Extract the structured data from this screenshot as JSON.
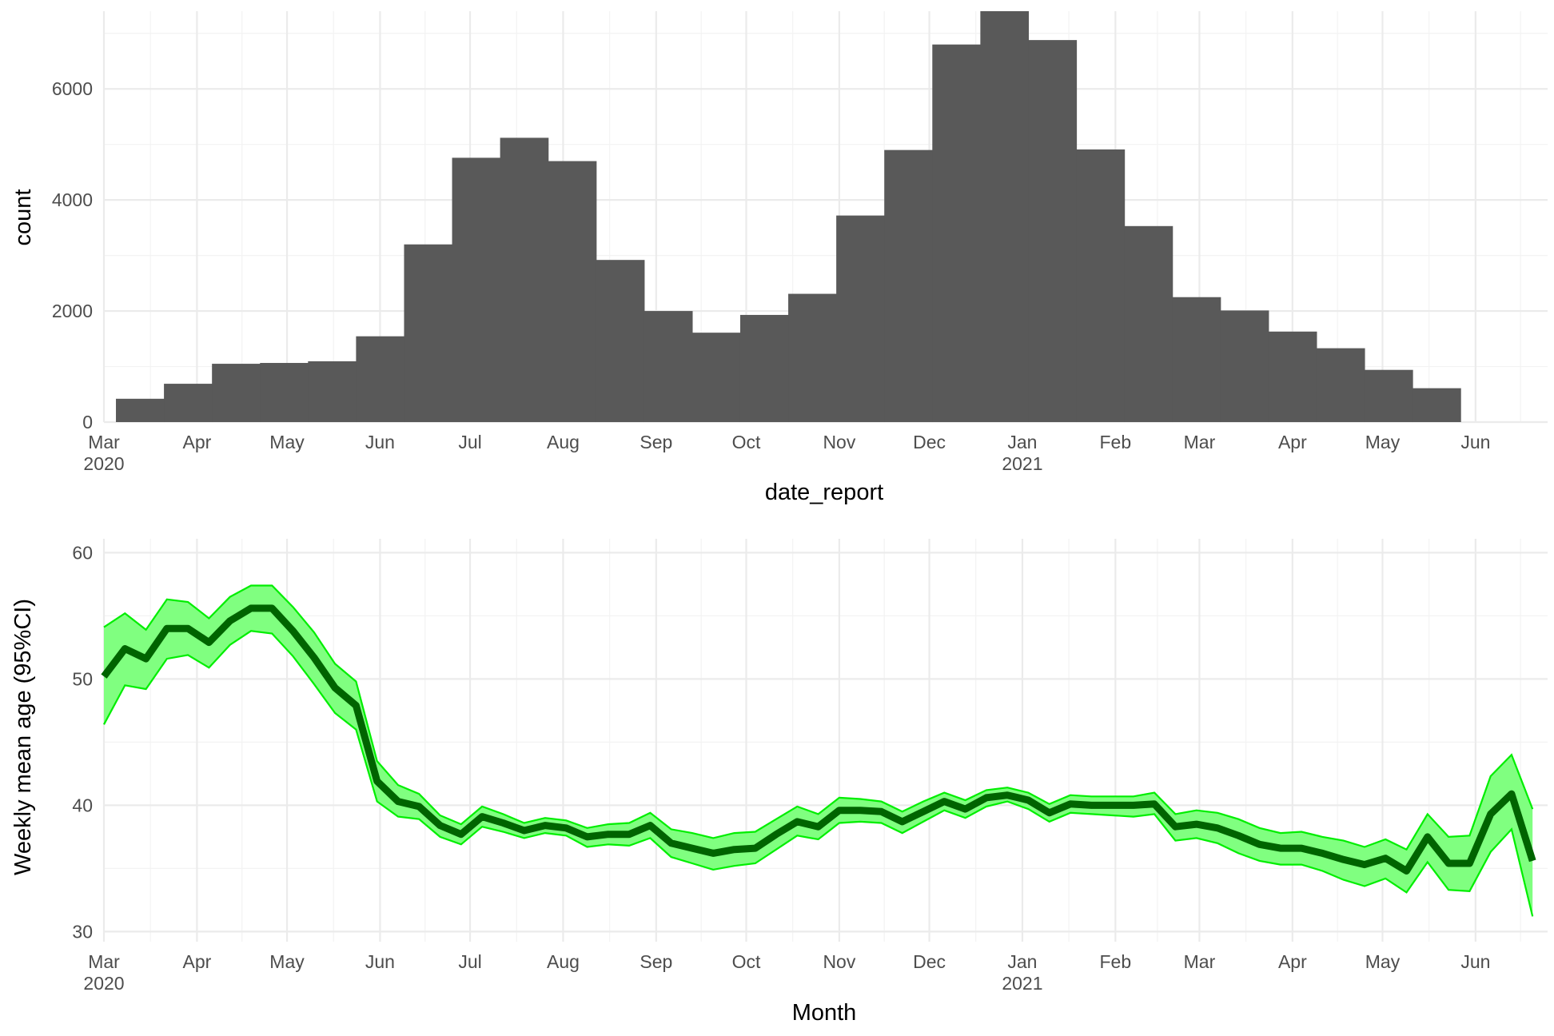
{
  "colors": {
    "bar_fill": "#595959",
    "grid_major": "#ebebeb",
    "grid_minor": "#f3f3f3",
    "ci_fill": "#80ff80",
    "ci_border": "#00ee00",
    "mean_line": "#006400"
  },
  "chart_data": [
    {
      "type": "bar",
      "title": "",
      "xlabel": "date_report",
      "ylabel": "count",
      "grid": true,
      "x_ticks": [
        {
          "date": "2020-03-01",
          "month": "Mar",
          "year": "2020"
        },
        {
          "date": "2020-04-01",
          "month": "Apr",
          "year": ""
        },
        {
          "date": "2020-05-01",
          "month": "May",
          "year": ""
        },
        {
          "date": "2020-06-01",
          "month": "Jun",
          "year": ""
        },
        {
          "date": "2020-07-01",
          "month": "Jul",
          "year": ""
        },
        {
          "date": "2020-08-01",
          "month": "Aug",
          "year": ""
        },
        {
          "date": "2020-09-01",
          "month": "Sep",
          "year": ""
        },
        {
          "date": "2020-10-01",
          "month": "Oct",
          "year": ""
        },
        {
          "date": "2020-11-01",
          "month": "Nov",
          "year": ""
        },
        {
          "date": "2020-12-01",
          "month": "Dec",
          "year": ""
        },
        {
          "date": "2021-01-01",
          "month": "Jan",
          "year": "2021"
        },
        {
          "date": "2021-02-01",
          "month": "Feb",
          "year": ""
        },
        {
          "date": "2021-03-01",
          "month": "Mar",
          "year": ""
        },
        {
          "date": "2021-04-01",
          "month": "Apr",
          "year": ""
        },
        {
          "date": "2021-05-01",
          "month": "May",
          "year": ""
        },
        {
          "date": "2021-06-01",
          "month": "Jun",
          "year": ""
        }
      ],
      "xlim": [
        "2020-03-01",
        "2021-06-25"
      ],
      "y_ticks": [
        0,
        2000,
        4000,
        6000
      ],
      "ylim": [
        0,
        7400
      ],
      "bins": [
        {
          "start": "2020-03-05",
          "end": "2020-03-21",
          "count": 420
        },
        {
          "start": "2020-03-21",
          "end": "2020-04-06",
          "count": 690
        },
        {
          "start": "2020-04-06",
          "end": "2020-04-22",
          "count": 1050
        },
        {
          "start": "2020-04-22",
          "end": "2020-05-08",
          "count": 1065
        },
        {
          "start": "2020-05-08",
          "end": "2020-05-24",
          "count": 1095
        },
        {
          "start": "2020-05-24",
          "end": "2020-06-09",
          "count": 1545
        },
        {
          "start": "2020-06-09",
          "end": "2020-06-25",
          "count": 3200
        },
        {
          "start": "2020-06-25",
          "end": "2020-07-11",
          "count": 4760
        },
        {
          "start": "2020-07-11",
          "end": "2020-07-27",
          "count": 5120
        },
        {
          "start": "2020-07-27",
          "end": "2020-08-12",
          "count": 4700
        },
        {
          "start": "2020-08-12",
          "end": "2020-08-28",
          "count": 2920
        },
        {
          "start": "2020-08-28",
          "end": "2020-09-13",
          "count": 2000
        },
        {
          "start": "2020-09-13",
          "end": "2020-09-29",
          "count": 1610
        },
        {
          "start": "2020-09-29",
          "end": "2020-10-15",
          "count": 1930
        },
        {
          "start": "2020-10-15",
          "end": "2020-10-31",
          "count": 2310
        },
        {
          "start": "2020-10-31",
          "end": "2020-11-16",
          "count": 3720
        },
        {
          "start": "2020-11-16",
          "end": "2020-12-02",
          "count": 4900
        },
        {
          "start": "2020-12-02",
          "end": "2020-12-18",
          "count": 6800
        },
        {
          "start": "2020-12-18",
          "end": "2021-01-03",
          "count": 7400
        },
        {
          "start": "2021-01-03",
          "end": "2021-01-19",
          "count": 6880
        },
        {
          "start": "2021-01-19",
          "end": "2021-02-04",
          "count": 4910
        },
        {
          "start": "2021-02-04",
          "end": "2021-02-20",
          "count": 3530
        },
        {
          "start": "2021-02-20",
          "end": "2021-03-08",
          "count": 2250
        },
        {
          "start": "2021-03-08",
          "end": "2021-03-24",
          "count": 2010
        },
        {
          "start": "2021-03-24",
          "end": "2021-04-09",
          "count": 1630
        },
        {
          "start": "2021-04-09",
          "end": "2021-04-25",
          "count": 1330
        },
        {
          "start": "2021-04-25",
          "end": "2021-05-11",
          "count": 940
        },
        {
          "start": "2021-05-11",
          "end": "2021-05-27",
          "count": 610
        }
      ]
    },
    {
      "type": "line",
      "title": "",
      "xlabel": "Month",
      "ylabel": "Weekly mean age (95%CI)",
      "grid": true,
      "x_ticks": [
        {
          "date": "2020-03-01",
          "month": "Mar",
          "year": "2020"
        },
        {
          "date": "2020-04-01",
          "month": "Apr",
          "year": ""
        },
        {
          "date": "2020-05-01",
          "month": "May",
          "year": ""
        },
        {
          "date": "2020-06-01",
          "month": "Jun",
          "year": ""
        },
        {
          "date": "2020-07-01",
          "month": "Jul",
          "year": ""
        },
        {
          "date": "2020-08-01",
          "month": "Aug",
          "year": ""
        },
        {
          "date": "2020-09-01",
          "month": "Sep",
          "year": ""
        },
        {
          "date": "2020-10-01",
          "month": "Oct",
          "year": ""
        },
        {
          "date": "2020-11-01",
          "month": "Nov",
          "year": ""
        },
        {
          "date": "2020-12-01",
          "month": "Dec",
          "year": ""
        },
        {
          "date": "2021-01-01",
          "month": "Jan",
          "year": "2021"
        },
        {
          "date": "2021-02-01",
          "month": "Feb",
          "year": ""
        },
        {
          "date": "2021-03-01",
          "month": "Mar",
          "year": ""
        },
        {
          "date": "2021-04-01",
          "month": "Apr",
          "year": ""
        },
        {
          "date": "2021-05-01",
          "month": "May",
          "year": ""
        },
        {
          "date": "2021-06-01",
          "month": "Jun",
          "year": ""
        }
      ],
      "xlim": [
        "2020-03-01",
        "2021-06-25"
      ],
      "y_ticks": [
        30,
        40,
        50,
        60
      ],
      "ylim": [
        29.2,
        61.1
      ],
      "series": [
        {
          "x": [
            "2020-03-01",
            "2020-03-08",
            "2020-03-15",
            "2020-03-22",
            "2020-03-29",
            "2020-04-05",
            "2020-04-12",
            "2020-04-19",
            "2020-04-26",
            "2020-05-03",
            "2020-05-10",
            "2020-05-17",
            "2020-05-24",
            "2020-05-31",
            "2020-06-07",
            "2020-06-14",
            "2020-06-21",
            "2020-06-28",
            "2020-07-05",
            "2020-07-12",
            "2020-07-19",
            "2020-07-26",
            "2020-08-02",
            "2020-08-09",
            "2020-08-16",
            "2020-08-23",
            "2020-08-30",
            "2020-09-06",
            "2020-09-13",
            "2020-09-20",
            "2020-09-27",
            "2020-10-04",
            "2020-10-11",
            "2020-10-18",
            "2020-10-25",
            "2020-11-01",
            "2020-11-08",
            "2020-11-15",
            "2020-11-22",
            "2020-11-29",
            "2020-12-06",
            "2020-12-13",
            "2020-12-20",
            "2020-12-27",
            "2021-01-03",
            "2021-01-10",
            "2021-01-17",
            "2021-01-24",
            "2021-01-31",
            "2021-02-07",
            "2021-02-14",
            "2021-02-21",
            "2021-02-28",
            "2021-03-07",
            "2021-03-14",
            "2021-03-21",
            "2021-03-28",
            "2021-04-04",
            "2021-04-11",
            "2021-04-18",
            "2021-04-25",
            "2021-05-02",
            "2021-05-09",
            "2021-05-16",
            "2021-05-23",
            "2021-05-30",
            "2021-06-06",
            "2021-06-13",
            "2021-06-20"
          ],
          "mean": [
            50.2,
            52.4,
            51.6,
            54.0,
            54.0,
            52.9,
            54.6,
            55.6,
            55.6,
            53.8,
            51.7,
            49.3,
            47.9,
            41.9,
            40.3,
            39.9,
            38.4,
            37.7,
            39.1,
            38.6,
            38.0,
            38.4,
            38.2,
            37.5,
            37.7,
            37.7,
            38.4,
            37.0,
            36.6,
            36.2,
            36.5,
            36.6,
            37.7,
            38.7,
            38.3,
            39.6,
            39.6,
            39.5,
            38.7,
            39.5,
            40.3,
            39.7,
            40.6,
            40.8,
            40.4,
            39.4,
            40.1,
            40.0,
            40.0,
            40.0,
            40.1,
            38.3,
            38.5,
            38.2,
            37.6,
            36.9,
            36.6,
            36.6,
            36.2,
            35.7,
            35.3,
            35.8,
            34.8,
            37.5,
            35.4,
            35.4,
            39.3,
            40.9,
            35.6
          ],
          "lower": [
            46.4,
            49.5,
            49.2,
            51.6,
            51.9,
            50.9,
            52.7,
            53.8,
            53.6,
            51.8,
            49.6,
            47.3,
            46.0,
            40.3,
            39.1,
            38.9,
            37.5,
            36.9,
            38.3,
            37.9,
            37.4,
            37.8,
            37.6,
            36.7,
            36.9,
            36.8,
            37.4,
            35.9,
            35.4,
            34.9,
            35.2,
            35.4,
            36.5,
            37.6,
            37.3,
            38.6,
            38.7,
            38.6,
            37.8,
            38.7,
            39.6,
            39.0,
            39.9,
            40.3,
            39.7,
            38.7,
            39.4,
            39.3,
            39.2,
            39.1,
            39.3,
            37.2,
            37.4,
            37.0,
            36.2,
            35.6,
            35.3,
            35.3,
            34.8,
            34.1,
            33.6,
            34.2,
            33.1,
            35.5,
            33.3,
            33.2,
            36.3,
            38.1,
            31.2
          ],
          "upper": [
            54.1,
            55.2,
            53.9,
            56.3,
            56.1,
            54.8,
            56.5,
            57.4,
            57.4,
            55.7,
            53.7,
            51.2,
            49.8,
            43.5,
            41.6,
            40.9,
            39.2,
            38.5,
            39.9,
            39.3,
            38.6,
            39.0,
            38.8,
            38.2,
            38.5,
            38.6,
            39.4,
            38.1,
            37.8,
            37.4,
            37.8,
            37.9,
            38.9,
            39.9,
            39.3,
            40.6,
            40.5,
            40.3,
            39.5,
            40.3,
            41.0,
            40.4,
            41.2,
            41.4,
            41.0,
            40.1,
            40.8,
            40.7,
            40.7,
            40.7,
            41.0,
            39.3,
            39.6,
            39.4,
            38.9,
            38.2,
            37.8,
            37.9,
            37.5,
            37.2,
            36.7,
            37.3,
            36.5,
            39.3,
            37.5,
            37.6,
            42.3,
            44.0,
            39.7
          ]
        }
      ]
    }
  ]
}
